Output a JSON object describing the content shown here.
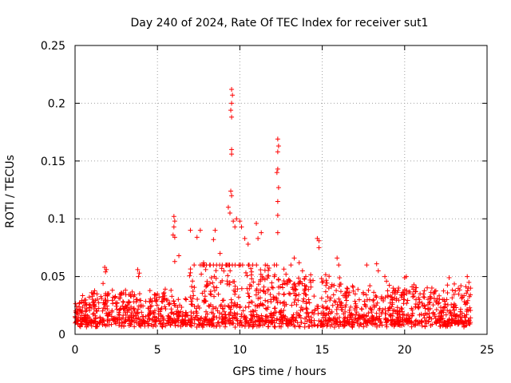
{
  "chart_data": {
    "type": "scatter",
    "title": "Day 240 of 2024, Rate Of TEC Index for receiver sut1",
    "xlabel": "GPS time / hours",
    "ylabel": "ROTI / TECUs",
    "xlim": [
      0,
      25
    ],
    "ylim": [
      0,
      0.25
    ],
    "xticks": [
      "0",
      "5",
      "10",
      "15",
      "20",
      "25"
    ],
    "yticks": [
      "0",
      "0.05",
      "0.1",
      "0.15",
      "0.2",
      "0.25"
    ],
    "grid": true,
    "marker": "plus",
    "color": "#ff0000",
    "series": [
      {
        "points": [
          [
            9.5,
            0.212
          ],
          [
            9.55,
            0.207
          ],
          [
            9.5,
            0.2
          ],
          [
            9.45,
            0.194
          ],
          [
            9.5,
            0.188
          ],
          [
            9.5,
            0.16
          ],
          [
            9.5,
            0.156
          ],
          [
            9.45,
            0.124
          ],
          [
            9.5,
            0.12
          ],
          [
            12.3,
            0.169
          ],
          [
            12.35,
            0.163
          ],
          [
            12.3,
            0.158
          ],
          [
            12.3,
            0.143
          ],
          [
            12.25,
            0.14
          ],
          [
            12.35,
            0.127
          ],
          [
            12.3,
            0.115
          ],
          [
            12.3,
            0.103
          ],
          [
            12.3,
            0.088
          ],
          [
            6.0,
            0.102
          ],
          [
            6.05,
            0.098
          ],
          [
            6.0,
            0.093
          ],
          [
            5.95,
            0.086
          ],
          [
            6.05,
            0.084
          ],
          [
            9.3,
            0.11
          ],
          [
            9.4,
            0.105
          ],
          [
            9.6,
            0.098
          ],
          [
            9.7,
            0.093
          ],
          [
            9.8,
            0.1
          ],
          [
            10.0,
            0.098
          ],
          [
            10.1,
            0.093
          ],
          [
            10.3,
            0.083
          ],
          [
            10.5,
            0.078
          ],
          [
            11.0,
            0.096
          ],
          [
            11.3,
            0.088
          ],
          [
            11.1,
            0.083
          ],
          [
            8.5,
            0.09
          ],
          [
            8.4,
            0.082
          ],
          [
            7.0,
            0.09
          ],
          [
            7.6,
            0.09
          ],
          [
            7.4,
            0.084
          ],
          [
            14.7,
            0.083
          ],
          [
            14.8,
            0.081
          ],
          [
            14.8,
            0.075
          ],
          [
            6.3,
            0.068
          ],
          [
            6.05,
            0.063
          ],
          [
            7.8,
            0.062
          ],
          [
            8.8,
            0.07
          ],
          [
            13.1,
            0.06
          ],
          [
            13.3,
            0.066
          ],
          [
            13.6,
            0.062
          ],
          [
            15.9,
            0.066
          ],
          [
            16.0,
            0.06
          ],
          [
            17.7,
            0.06
          ],
          [
            18.3,
            0.061
          ],
          [
            18.4,
            0.055
          ],
          [
            18.8,
            0.05
          ],
          [
            18.9,
            0.046
          ],
          [
            20.1,
            0.05
          ],
          [
            20.0,
            0.049
          ],
          [
            22.7,
            0.049
          ],
          [
            23.8,
            0.05
          ],
          [
            23.9,
            0.045
          ],
          [
            1.8,
            0.058
          ],
          [
            1.9,
            0.056
          ],
          [
            1.85,
            0.054
          ],
          [
            3.8,
            0.056
          ],
          [
            3.9,
            0.053
          ],
          [
            3.85,
            0.05
          ],
          [
            1.7,
            0.044
          ],
          [
            5.0,
            0.035
          ],
          [
            5.1,
            0.032
          ],
          [
            0.1,
            0.024
          ],
          [
            0.15,
            0.02
          ],
          [
            1.0,
            0.036
          ],
          [
            1.05,
            0.033
          ],
          [
            2.3,
            0.032
          ],
          [
            2.8,
            0.034
          ],
          [
            3.4,
            0.033
          ],
          [
            4.6,
            0.029
          ],
          [
            5.5,
            0.022
          ],
          [
            12.8,
            0.052
          ],
          [
            12.9,
            0.046
          ],
          [
            13.8,
            0.055
          ],
          [
            14.0,
            0.05
          ],
          [
            14.3,
            0.045
          ],
          [
            15.4,
            0.04
          ],
          [
            16.5,
            0.04
          ],
          [
            17.0,
            0.035
          ],
          [
            17.5,
            0.035
          ],
          [
            19.3,
            0.04
          ],
          [
            19.6,
            0.038
          ],
          [
            20.5,
            0.035
          ],
          [
            21.2,
            0.032
          ],
          [
            21.8,
            0.031
          ],
          [
            22.3,
            0.03
          ],
          [
            24.0,
            0.04
          ],
          [
            23.5,
            0.032
          ]
        ]
      }
    ]
  }
}
